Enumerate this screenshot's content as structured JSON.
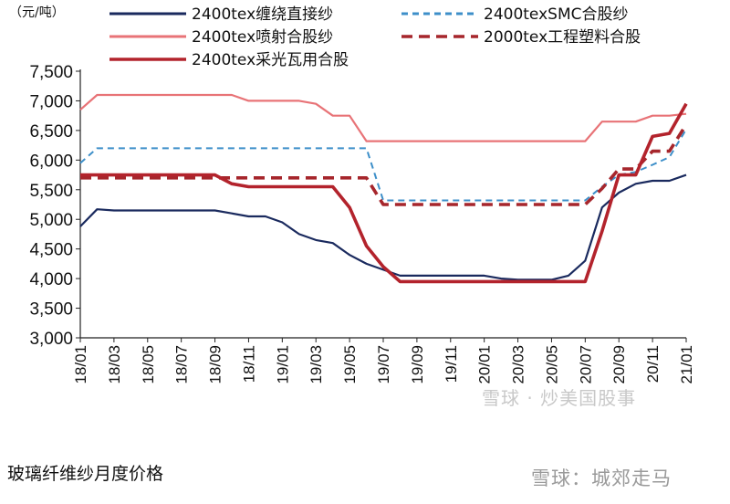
{
  "caption": "玻璃纤维纱月度价格",
  "watermark_inline": "雪球 · 炒美国股事",
  "watermark_bottom": "雪球：城郊走马",
  "chart_data": {
    "type": "line",
    "unit_label": "（元/吨）",
    "ylim": [
      3000,
      7500
    ],
    "yticks": [
      3000,
      3500,
      4000,
      4500,
      5000,
      5500,
      6000,
      6500,
      7000,
      7500
    ],
    "ytick_labels": [
      "3,000",
      "3,500",
      "4,000",
      "4,500",
      "5,000",
      "5,500",
      "6,000",
      "6,500",
      "7,000",
      "7,500"
    ],
    "x": [
      "18/01",
      "18/02",
      "18/03",
      "18/04",
      "18/05",
      "18/06",
      "18/07",
      "18/08",
      "18/09",
      "18/10",
      "18/11",
      "18/12",
      "19/01",
      "19/02",
      "19/03",
      "19/04",
      "19/05",
      "19/06",
      "19/07",
      "19/08",
      "19/09",
      "19/10",
      "19/11",
      "19/12",
      "20/01",
      "20/02",
      "20/03",
      "20/04",
      "20/05",
      "20/06",
      "20/07",
      "20/08",
      "20/09",
      "20/10",
      "20/11",
      "20/12",
      "21/01"
    ],
    "xtick_labels": [
      "18/01",
      "18/03",
      "18/05",
      "18/07",
      "18/09",
      "18/11",
      "19/01",
      "19/03",
      "19/05",
      "19/07",
      "19/09",
      "19/11",
      "20/01",
      "20/03",
      "20/05",
      "20/07",
      "20/09",
      "20/11",
      "21/01"
    ],
    "grid": false,
    "legend_position": "top",
    "series": [
      {
        "name": "2400tex缠绕直接纱",
        "color": "#1a2a5e",
        "style": "solid",
        "values": [
          4880,
          5170,
          5150,
          5150,
          5150,
          5150,
          5150,
          5150,
          5150,
          5100,
          5050,
          5050,
          4950,
          4750,
          4650,
          4600,
          4400,
          4250,
          4150,
          4050,
          4050,
          4050,
          4050,
          4050,
          4050,
          4000,
          3980,
          3980,
          3980,
          4050,
          4300,
          5200,
          5450,
          5600,
          5650,
          5650,
          5750
        ]
      },
      {
        "name": "2400texSMC合股纱",
        "color": "#3d8fc9",
        "style": "dashed-thin",
        "values": [
          5950,
          6200,
          6200,
          6200,
          6200,
          6200,
          6200,
          6200,
          6200,
          6200,
          6200,
          6200,
          6200,
          6200,
          6200,
          6200,
          6200,
          6200,
          5320,
          5320,
          5320,
          5320,
          5320,
          5320,
          5320,
          5320,
          5320,
          5320,
          5320,
          5320,
          5320,
          5550,
          5750,
          5800,
          5920,
          6050,
          6520
        ]
      },
      {
        "name": "2400tex喷射合股纱",
        "color": "#e87377",
        "style": "solid",
        "values": [
          6850,
          7100,
          7100,
          7100,
          7100,
          7100,
          7100,
          7100,
          7100,
          7100,
          7000,
          7000,
          7000,
          7000,
          6950,
          6750,
          6750,
          6320,
          6320,
          6320,
          6320,
          6320,
          6320,
          6320,
          6320,
          6320,
          6320,
          6320,
          6320,
          6320,
          6320,
          6650,
          6650,
          6650,
          6750,
          6750,
          6780
        ]
      },
      {
        "name": "2000tex工程塑料合股",
        "color": "#a6262c",
        "style": "dashed-thick",
        "values": [
          5700,
          5700,
          5700,
          5700,
          5700,
          5700,
          5700,
          5700,
          5700,
          5700,
          5700,
          5700,
          5700,
          5700,
          5700,
          5700,
          5700,
          5700,
          5250,
          5250,
          5250,
          5250,
          5250,
          5250,
          5250,
          5250,
          5250,
          5250,
          5250,
          5250,
          5250,
          5520,
          5850,
          5850,
          6150,
          6150,
          6600
        ]
      },
      {
        "name": "2400tex采光瓦用合股",
        "color": "#b3232c",
        "style": "solid-thick",
        "values": [
          5750,
          5750,
          5750,
          5750,
          5750,
          5750,
          5750,
          5750,
          5750,
          5600,
          5550,
          5550,
          5550,
          5550,
          5550,
          5550,
          5200,
          4550,
          4200,
          3950,
          3950,
          3950,
          3950,
          3950,
          3950,
          3950,
          3950,
          3950,
          3950,
          3950,
          3950,
          4800,
          5750,
          5750,
          6400,
          6450,
          6950
        ]
      }
    ]
  }
}
